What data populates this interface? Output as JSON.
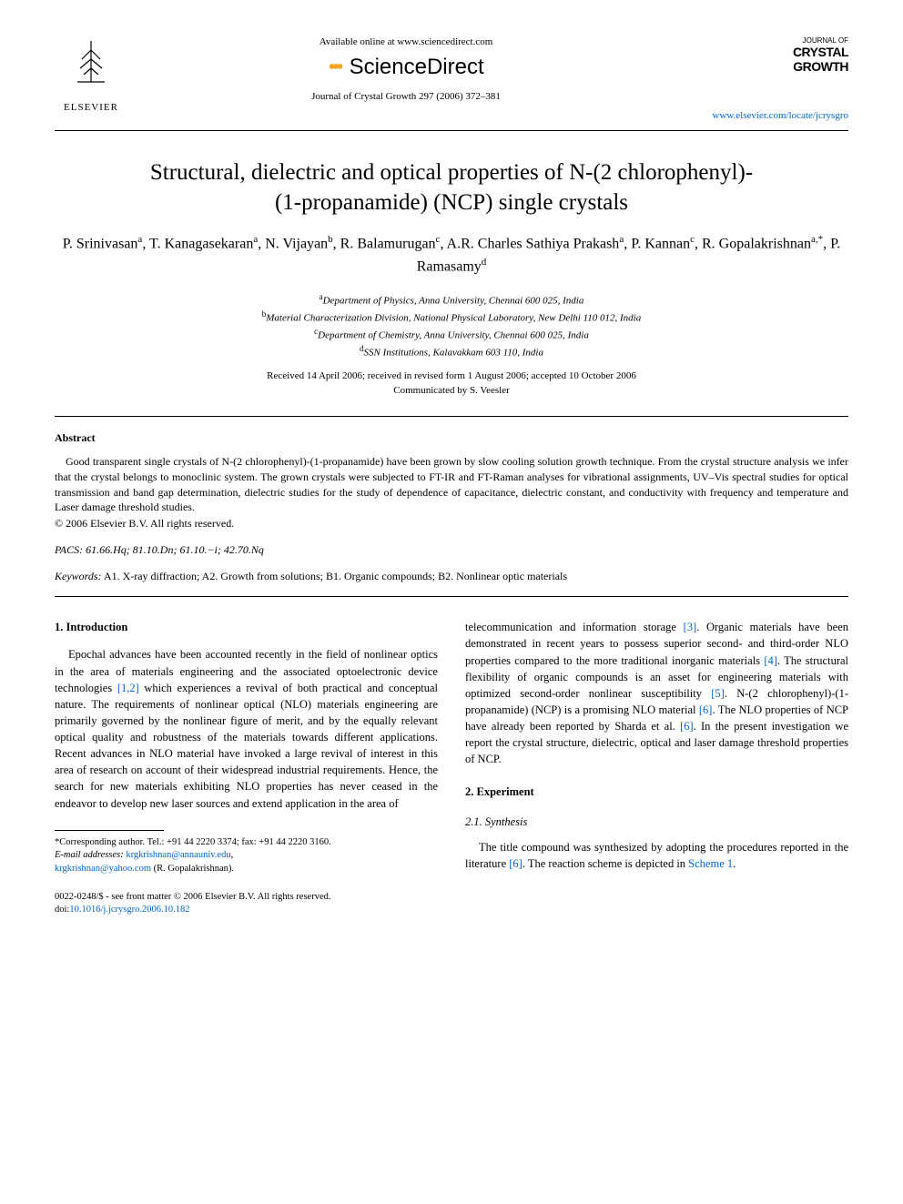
{
  "header": {
    "elsevier": "ELSEVIER",
    "available_online": "Available online at www.sciencedirect.com",
    "sciencedirect": "ScienceDirect",
    "journal_ref": "Journal of Crystal Growth 297 (2006) 372–381",
    "journal_small": "JOURNAL OF",
    "journal_big1": "CRYSTAL",
    "journal_big2": "GROWTH",
    "journal_link": "www.elsevier.com/locate/jcrysgro"
  },
  "title_line1": "Structural, dielectric and optical properties of N-(2 chlorophenyl)-",
  "title_line2": "(1-propanamide) (NCP) single crystals",
  "authors_html": "P. Srinivasan<sup>a</sup>, T. Kanagasekaran<sup>a</sup>, N. Vijayan<sup>b</sup>, R. Balamurugan<sup>c</sup>, A.R. Charles Sathiya Prakash<sup>a</sup>, P. Kannan<sup>c</sup>, R. Gopalakrishnan<sup>a,*</sup>, P. Ramasamy<sup>d</sup>",
  "affiliations": {
    "a": "Department of Physics, Anna University, Chennai 600 025, India",
    "b": "Material Characterization Division, National Physical Laboratory, New Delhi 110 012, India",
    "c": "Department of Chemistry, Anna University, Chennai 600 025, India",
    "d": "SSN Institutions, Kalavakkam 603 110, India"
  },
  "received": "Received 14 April 2006; received in revised form 1 August 2006; accepted 10 October 2006",
  "communicated": "Communicated by S. Veesler",
  "abstract_heading": "Abstract",
  "abstract_text": "Good transparent single crystals of N-(2 chlorophenyl)-(1-propanamide) have been grown by slow cooling solution growth technique. From the crystal structure analysis we infer that the crystal belongs to monoclinic system. The grown crystals were subjected to FT-IR and FT-Raman analyses for vibrational assignments, UV–Vis spectral studies for optical transmission and band gap determination, dielectric studies for the study of dependence of capacitance, dielectric constant, and conductivity with frequency and temperature and Laser damage threshold studies.",
  "copyright": "© 2006 Elsevier B.V. All rights reserved.",
  "pacs_label": "PACS:",
  "pacs_values": "61.66.Hq; 81.10.Dn; 61.10.−i; 42.70.Nq",
  "keywords_label": "Keywords:",
  "keywords_values": "A1. X-ray diffraction; A2. Growth from solutions; B1. Organic compounds; B2. Nonlinear optic materials",
  "section1_heading": "1. Introduction",
  "section1_p1a": "Epochal advances have been accounted recently in the field of nonlinear optics in the area of materials engineering and the associated optoelectronic device technologies ",
  "ref12": "[1,2]",
  "section1_p1b": " which experiences a revival of both practical and conceptual nature. The requirements of nonlinear optical (NLO) materials engineering are primarily governed by the nonlinear figure of merit, and by the equally relevant optical quality and robustness of the materials towards different applications. Recent advances in NLO material have invoked a large revival of interest in this area of research on account of their widespread industrial requirements. Hence, the search for new materials exhibiting NLO properties has never ceased in the endeavor to develop new laser sources and extend application in the area of ",
  "col2_p1a": "telecommunication and information storage ",
  "ref3": "[3]",
  "col2_p1b": ". Organic materials have been demonstrated in recent years to possess superior second- and third-order NLO properties compared to the more traditional inorganic materials ",
  "ref4": "[4]",
  "col2_p1c": ". The structural flexibility of organic compounds is an asset for engineering materials with optimized second-order nonlinear susceptibility ",
  "ref5": "[5]",
  "col2_p1d": ". N-(2 chlorophenyl)-(1-propanamide) (NCP) is a promising NLO material ",
  "ref6a": "[6]",
  "col2_p1e": ". The NLO properties of NCP have already been reported by Sharda et al. ",
  "ref6b": "[6]",
  "col2_p1f": ". In the present investigation we report the crystal structure, dielectric, optical and laser damage threshold properties of NCP.",
  "section2_heading": "2. Experiment",
  "section21_heading": "2.1. Synthesis",
  "section21_p1a": "The title compound was synthesized by adopting the procedures reported in the literature ",
  "ref6c": "[6]",
  "section21_p1b": ". The reaction scheme is depicted in ",
  "scheme1": "Scheme 1",
  "section21_p1c": ".",
  "footnote_corr": "*Corresponding author. Tel.: +91 44 2220 3374; fax: +91 44 2220 3160.",
  "footnote_email_label": "E-mail addresses:",
  "footnote_email1": "krgkrishnan@annauniv.edu",
  "footnote_email_sep": ",",
  "footnote_email2": "krgkrishnan@yahoo.com",
  "footnote_email_name": "(R. Gopalakrishnan).",
  "bottom_issn": "0022-0248/$ - see front matter © 2006 Elsevier B.V. All rights reserved.",
  "bottom_doi_label": "doi:",
  "bottom_doi": "10.1016/j.jcrysgro.2006.10.182"
}
